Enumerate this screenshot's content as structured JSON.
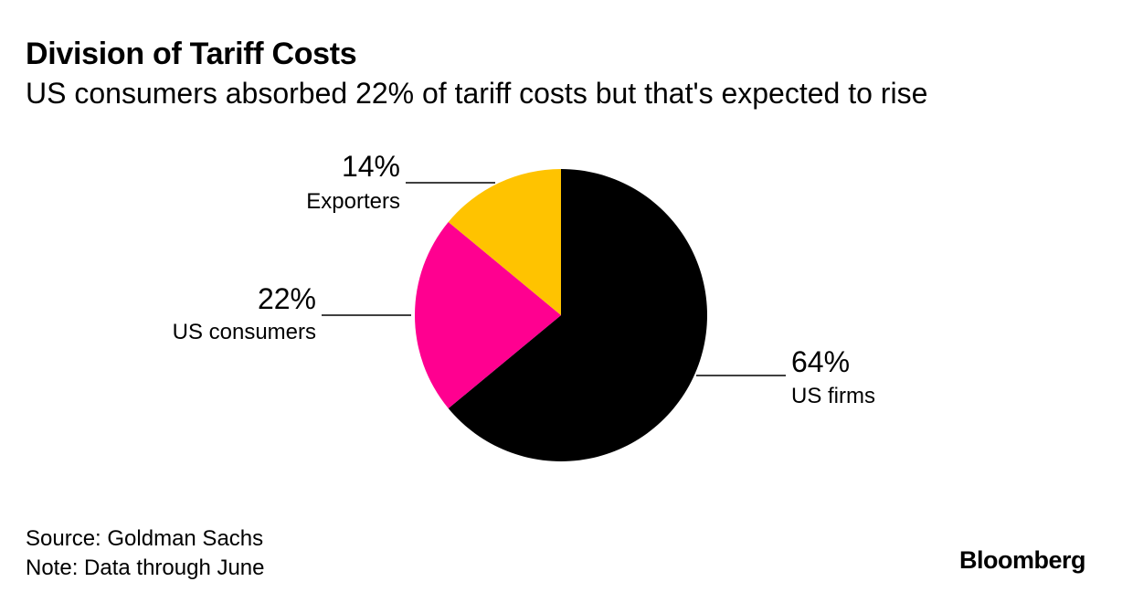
{
  "chart_data": {
    "type": "pie",
    "title": "Division of Tariff Costs",
    "subtitle": "US consumers absorbed 22% of tariff costs but that's expected to rise",
    "slices": [
      {
        "label": "US firms",
        "value": 64,
        "value_label": "64%",
        "color": "#000000"
      },
      {
        "label": "US consumers",
        "value": 22,
        "value_label": "22%",
        "color": "#ff0090"
      },
      {
        "label": "Exporters",
        "value": 14,
        "value_label": "14%",
        "color": "#ffc300"
      }
    ],
    "start_angle": "12 o'clock, clockwise",
    "legend": "none (direct labels)"
  },
  "footer": {
    "source": "Source: Goldman Sachs",
    "note": "Note: Data through June"
  },
  "brand": "Bloomberg"
}
